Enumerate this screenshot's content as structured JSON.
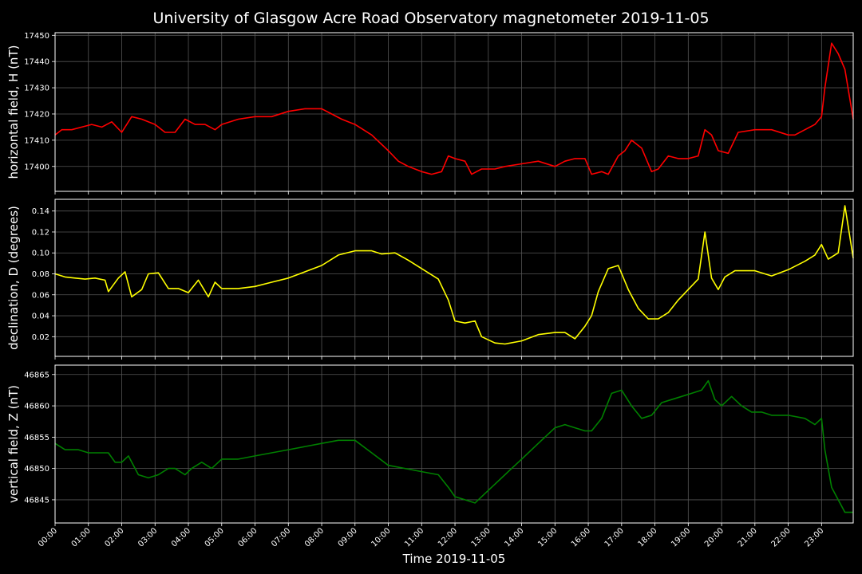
{
  "chart_data": {
    "type": "line",
    "title": "University of Glasgow Acre Road Observatory magnetometer 2019-11-05",
    "xlabel": "Time 2019-11-05",
    "x_tick_labels": [
      "00:00",
      "01:00",
      "02:00",
      "03:00",
      "04:00",
      "05:00",
      "06:00",
      "07:00",
      "08:00",
      "09:00",
      "10:00",
      "11:00",
      "12:00",
      "13:00",
      "14:00",
      "15:00",
      "16:00",
      "17:00",
      "18:00",
      "19:00",
      "20:00",
      "21:00",
      "22:00",
      "23:00"
    ],
    "xlim_hours": [
      0,
      23.95
    ],
    "grid": true,
    "panels": [
      {
        "name": "H",
        "ylabel": "horizontal field, H (nT)",
        "color": "#ff0000",
        "ylim": [
          17390.5,
          17451
        ],
        "yticks": [
          "17400",
          "17410",
          "17420",
          "17430",
          "17440",
          "17450"
        ],
        "x": [
          0,
          0.2,
          0.5,
          0.8,
          1.1,
          1.4,
          1.7,
          2.0,
          2.3,
          2.6,
          3.0,
          3.3,
          3.6,
          3.9,
          4.2,
          4.5,
          4.8,
          5.0,
          5.5,
          6.0,
          6.5,
          7.0,
          7.5,
          8.0,
          8.3,
          8.6,
          9.0,
          9.5,
          10.0,
          10.3,
          10.6,
          11.0,
          11.3,
          11.6,
          11.8,
          12.0,
          12.3,
          12.5,
          12.8,
          13.2,
          13.5,
          14.0,
          14.5,
          15.0,
          15.3,
          15.6,
          15.9,
          16.1,
          16.4,
          16.6,
          16.9,
          17.1,
          17.3,
          17.6,
          17.9,
          18.1,
          18.4,
          18.7,
          19.0,
          19.3,
          19.5,
          19.7,
          19.9,
          20.2,
          20.5,
          21.0,
          21.5,
          22.0,
          22.2,
          22.5,
          22.8,
          23.0,
          23.1,
          23.3,
          23.5,
          23.7,
          23.95
        ],
        "y": [
          17412,
          17414,
          17414,
          17415,
          17416,
          17415,
          17417,
          17413,
          17419,
          17418,
          17416,
          17413,
          17413,
          17418,
          17416,
          17416,
          17414,
          17416,
          17418,
          17419,
          17419,
          17421,
          17422,
          17422,
          17420,
          17418,
          17416,
          17412,
          17406,
          17402,
          17400,
          17398,
          17397,
          17398,
          17404,
          17403,
          17402,
          17397,
          17399,
          17399,
          17400,
          17401,
          17402,
          17400,
          17402,
          17403,
          17403,
          17397,
          17398,
          17397,
          17404,
          17406,
          17410,
          17407,
          17398,
          17399,
          17404,
          17403,
          17403,
          17404,
          17414,
          17412,
          17406,
          17405,
          17413,
          17414,
          17414,
          17412,
          17412,
          17414,
          17416,
          17419,
          17430,
          17447,
          17443,
          17437,
          17418
        ]
      },
      {
        "name": "D",
        "ylabel": "declination, D (degrees)",
        "color": "#ffff00",
        "ylim": [
          0.0012,
          0.1512
        ],
        "yticks": [
          "0.02",
          "0.04",
          "0.06",
          "0.08",
          "0.10",
          "0.12",
          "0.14"
        ],
        "x": [
          0,
          0.3,
          0.6,
          0.9,
          1.2,
          1.5,
          1.6,
          1.9,
          2.1,
          2.3,
          2.6,
          2.8,
          3.1,
          3.4,
          3.7,
          4.0,
          4.3,
          4.6,
          4.8,
          5.0,
          5.5,
          6.0,
          6.5,
          7.0,
          7.5,
          8.0,
          8.5,
          9.0,
          9.5,
          9.8,
          10.2,
          10.6,
          11.0,
          11.5,
          11.8,
          12.0,
          12.3,
          12.6,
          12.8,
          13.2,
          13.5,
          14.0,
          14.5,
          15.0,
          15.3,
          15.6,
          15.9,
          16.1,
          16.3,
          16.6,
          16.9,
          17.2,
          17.5,
          17.8,
          18.1,
          18.4,
          18.7,
          19.0,
          19.3,
          19.5,
          19.7,
          19.9,
          20.1,
          20.4,
          20.7,
          21.0,
          21.5,
          22.0,
          22.5,
          22.8,
          23.0,
          23.2,
          23.5,
          23.7,
          23.95
        ],
        "y": [
          0.08,
          0.077,
          0.076,
          0.075,
          0.076,
          0.074,
          0.063,
          0.076,
          0.082,
          0.058,
          0.065,
          0.08,
          0.081,
          0.066,
          0.066,
          0.062,
          0.074,
          0.058,
          0.072,
          0.066,
          0.066,
          0.068,
          0.072,
          0.076,
          0.082,
          0.088,
          0.098,
          0.102,
          0.102,
          0.099,
          0.1,
          0.093,
          0.085,
          0.075,
          0.055,
          0.035,
          0.033,
          0.035,
          0.02,
          0.014,
          0.013,
          0.016,
          0.022,
          0.024,
          0.024,
          0.018,
          0.03,
          0.04,
          0.063,
          0.085,
          0.088,
          0.065,
          0.047,
          0.037,
          0.037,
          0.043,
          0.055,
          0.065,
          0.075,
          0.12,
          0.076,
          0.065,
          0.077,
          0.083,
          0.083,
          0.083,
          0.078,
          0.084,
          0.092,
          0.098,
          0.108,
          0.094,
          0.1,
          0.145,
          0.095
        ],
        "y_grid_values": [
          0.02,
          0.04,
          0.06,
          0.08,
          0.1,
          0.12,
          0.14
        ]
      },
      {
        "name": "Z",
        "ylabel": "vertical field, Z (nT)",
        "color": "#008000",
        "ylim": [
          46841.3,
          46866.5
        ],
        "yticks": [
          "46845",
          "46850",
          "46855",
          "46860",
          "46865"
        ],
        "x": [
          0,
          0.3,
          0.7,
          1.0,
          1.3,
          1.6,
          1.8,
          2.0,
          2.2,
          2.5,
          2.8,
          3.1,
          3.4,
          3.6,
          3.9,
          4.1,
          4.4,
          4.7,
          5.0,
          5.5,
          6.0,
          6.5,
          7.0,
          7.5,
          8.0,
          8.5,
          9.0,
          9.5,
          10.0,
          10.5,
          11.0,
          11.5,
          11.8,
          12.0,
          12.3,
          12.6,
          12.9,
          13.2,
          13.6,
          14.0,
          14.5,
          15.0,
          15.3,
          15.6,
          15.9,
          16.1,
          16.4,
          16.7,
          17.0,
          17.3,
          17.6,
          17.9,
          18.2,
          18.5,
          18.8,
          19.1,
          19.4,
          19.6,
          19.8,
          20.0,
          20.3,
          20.6,
          20.9,
          21.2,
          21.5,
          22.0,
          22.5,
          22.8,
          23.0,
          23.1,
          23.3,
          23.5,
          23.7,
          23.95
        ],
        "y": [
          46854,
          46853,
          46853,
          46852.5,
          46852.5,
          46852.5,
          46851,
          46851,
          46852,
          46849,
          46848.5,
          46849,
          46850,
          46850,
          46849,
          46850,
          46851,
          46850,
          46851.5,
          46851.5,
          46852,
          46852.5,
          46853,
          46853.5,
          46854,
          46854.5,
          46854.5,
          46852.5,
          46850.5,
          46850,
          46849.5,
          46849,
          46847,
          46845.5,
          46845,
          46844.5,
          46846,
          46847.5,
          46849.5,
          46851.5,
          46854,
          46856.5,
          46857,
          46856.5,
          46856,
          46856,
          46858,
          46862,
          46862.5,
          46860,
          46858,
          46858.5,
          46860.5,
          46861,
          46861.5,
          46862,
          46862.5,
          46864,
          46861,
          46860,
          46861.5,
          46860,
          46859,
          46859,
          46858.5,
          46858.5,
          46858,
          46857,
          46858,
          46853,
          46847,
          46845,
          46843,
          46843
        ]
      }
    ]
  }
}
